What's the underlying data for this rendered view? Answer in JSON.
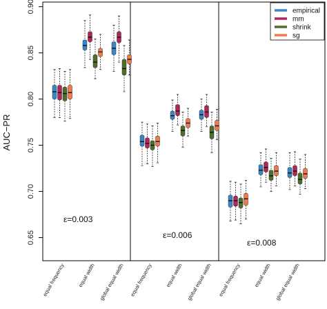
{
  "chart_data": {
    "type": "box",
    "ylabel": "AUC−PR",
    "ylim": [
      0.625,
      0.905
    ],
    "yticks": [
      "0.65",
      "0.70",
      "0.75",
      "0.80",
      "0.85",
      "0.90"
    ],
    "categories": [
      "equal frequency",
      "equal width",
      "global equal width"
    ],
    "legend": {
      "placement": "top-right",
      "entries": [
        {
          "name": "empirical",
          "color": "#3a86c8"
        },
        {
          "name": "mm",
          "color": "#b3245a"
        },
        {
          "name": "shrink",
          "color": "#4e6e2a"
        },
        {
          "name": "sg",
          "color": "#f07a4a"
        }
      ]
    },
    "panels": [
      {
        "label": "ε=0.003",
        "groups": [
          {
            "category": "equal frequency",
            "boxes": [
              {
                "series": "empirical",
                "min": 0.78,
                "q1": 0.8,
                "median": 0.808,
                "q3": 0.815,
                "max": 0.832
              },
              {
                "series": "mm",
                "min": 0.78,
                "q1": 0.799,
                "median": 0.807,
                "q3": 0.815,
                "max": 0.833
              },
              {
                "series": "shrink",
                "min": 0.776,
                "q1": 0.798,
                "median": 0.806,
                "q3": 0.813,
                "max": 0.83
              },
              {
                "series": "sg",
                "min": 0.779,
                "q1": 0.8,
                "median": 0.807,
                "q3": 0.815,
                "max": 0.832
              }
            ]
          },
          {
            "category": "equal width",
            "boxes": [
              {
                "series": "empirical",
                "min": 0.834,
                "q1": 0.853,
                "median": 0.858,
                "q3": 0.864,
                "max": 0.885
              },
              {
                "series": "mm",
                "min": 0.843,
                "q1": 0.862,
                "median": 0.867,
                "q3": 0.873,
                "max": 0.891
              },
              {
                "series": "shrink",
                "min": 0.822,
                "q1": 0.834,
                "median": 0.84,
                "q3": 0.848,
                "max": 0.865
              },
              {
                "series": "sg",
                "min": 0.832,
                "q1": 0.846,
                "median": 0.851,
                "q3": 0.855,
                "max": 0.87
              }
            ]
          },
          {
            "category": "global equal width",
            "boxes": [
              {
                "series": "empirical",
                "min": 0.83,
                "q1": 0.848,
                "median": 0.855,
                "q3": 0.862,
                "max": 0.88
              },
              {
                "series": "mm",
                "min": 0.84,
                "q1": 0.861,
                "median": 0.867,
                "q3": 0.873,
                "max": 0.89
              },
              {
                "series": "shrink",
                "min": 0.808,
                "q1": 0.826,
                "median": 0.833,
                "q3": 0.843,
                "max": 0.858
              },
              {
                "series": "sg",
                "min": 0.826,
                "q1": 0.838,
                "median": 0.843,
                "q3": 0.848,
                "max": 0.864
              }
            ]
          }
        ]
      },
      {
        "label": "ε=0.006",
        "groups": [
          {
            "category": "equal frequency",
            "boxes": [
              {
                "series": "empirical",
                "min": 0.728,
                "q1": 0.749,
                "median": 0.754,
                "q3": 0.761,
                "max": 0.775
              },
              {
                "series": "mm",
                "min": 0.73,
                "q1": 0.747,
                "median": 0.752,
                "q3": 0.758,
                "max": 0.773
              },
              {
                "series": "shrink",
                "min": 0.727,
                "q1": 0.745,
                "median": 0.75,
                "q3": 0.755,
                "max": 0.771
              },
              {
                "series": "sg",
                "min": 0.731,
                "q1": 0.749,
                "median": 0.754,
                "q3": 0.76,
                "max": 0.774
              }
            ]
          },
          {
            "category": "equal width",
            "boxes": [
              {
                "series": "empirical",
                "min": 0.765,
                "q1": 0.778,
                "median": 0.782,
                "q3": 0.787,
                "max": 0.799
              },
              {
                "series": "mm",
                "min": 0.772,
                "q1": 0.782,
                "median": 0.787,
                "q3": 0.794,
                "max": 0.805
              },
              {
                "series": "shrink",
                "min": 0.748,
                "q1": 0.76,
                "median": 0.766,
                "q3": 0.771,
                "max": 0.786
              },
              {
                "series": "sg",
                "min": 0.76,
                "q1": 0.769,
                "median": 0.774,
                "q3": 0.779,
                "max": 0.79
              }
            ]
          },
          {
            "category": "global equal width",
            "boxes": [
              {
                "series": "empirical",
                "min": 0.765,
                "q1": 0.778,
                "median": 0.783,
                "q3": 0.788,
                "max": 0.8
              },
              {
                "series": "mm",
                "min": 0.77,
                "q1": 0.78,
                "median": 0.786,
                "q3": 0.793,
                "max": 0.805
              },
              {
                "series": "shrink",
                "min": 0.742,
                "q1": 0.757,
                "median": 0.764,
                "q3": 0.771,
                "max": 0.786
              },
              {
                "series": "sg",
                "min": 0.756,
                "q1": 0.766,
                "median": 0.771,
                "q3": 0.777,
                "max": 0.789
              }
            ]
          }
        ]
      },
      {
        "label": "ε=0.008",
        "groups": [
          {
            "category": "equal frequency",
            "boxes": [
              {
                "series": "empirical",
                "min": 0.668,
                "q1": 0.683,
                "median": 0.69,
                "q3": 0.696,
                "max": 0.711
              },
              {
                "series": "mm",
                "min": 0.669,
                "q1": 0.684,
                "median": 0.69,
                "q3": 0.695,
                "max": 0.71
              },
              {
                "series": "shrink",
                "min": 0.665,
                "q1": 0.682,
                "median": 0.688,
                "q3": 0.693,
                "max": 0.708
              },
              {
                "series": "sg",
                "min": 0.67,
                "q1": 0.685,
                "median": 0.692,
                "q3": 0.698,
                "max": 0.712
              }
            ]
          },
          {
            "category": "equal width",
            "boxes": [
              {
                "series": "empirical",
                "min": 0.705,
                "q1": 0.718,
                "median": 0.723,
                "q3": 0.729,
                "max": 0.742
              },
              {
                "series": "mm",
                "min": 0.71,
                "q1": 0.721,
                "median": 0.726,
                "q3": 0.732,
                "max": 0.746
              },
              {
                "series": "shrink",
                "min": 0.7,
                "q1": 0.712,
                "median": 0.717,
                "q3": 0.723,
                "max": 0.736
              },
              {
                "series": "sg",
                "min": 0.706,
                "q1": 0.717,
                "median": 0.722,
                "q3": 0.728,
                "max": 0.742
              }
            ]
          },
          {
            "category": "global equal width",
            "boxes": [
              {
                "series": "empirical",
                "min": 0.702,
                "q1": 0.715,
                "median": 0.72,
                "q3": 0.726,
                "max": 0.742
              },
              {
                "series": "mm",
                "min": 0.706,
                "q1": 0.717,
                "median": 0.722,
                "q3": 0.728,
                "max": 0.743
              },
              {
                "series": "shrink",
                "min": 0.697,
                "q1": 0.708,
                "median": 0.713,
                "q3": 0.72,
                "max": 0.735
              },
              {
                "series": "sg",
                "min": 0.703,
                "q1": 0.714,
                "median": 0.719,
                "q3": 0.725,
                "max": 0.74
              }
            ]
          }
        ]
      }
    ]
  }
}
